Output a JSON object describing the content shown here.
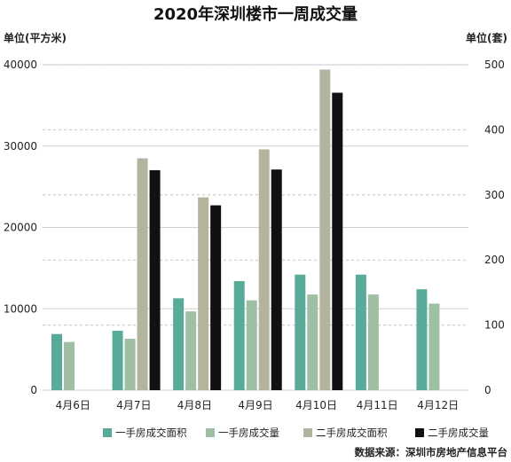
{
  "chart_data": {
    "type": "bar",
    "title": "2020年深圳楼市一周成交量",
    "left_unit": "单位(平方米)",
    "right_unit": "单位(套)",
    "categories": [
      "4月6日",
      "4月7日",
      "4月8日",
      "4月9日",
      "4月10日",
      "4月11日",
      "4月12日"
    ],
    "y_left_ticks": [
      "0",
      "10000",
      "20000",
      "30000",
      "40000"
    ],
    "y_right_ticks": [
      "0",
      "100",
      "200",
      "300",
      "400",
      "500"
    ],
    "ylim_left": [
      0,
      40000
    ],
    "ylim_right": [
      0,
      500
    ],
    "grid": true,
    "legend_position": "bottom",
    "series": [
      {
        "name": "一手房成交面积",
        "axis": "left",
        "color": "#58ab98",
        "values": [
          6900,
          7300,
          11300,
          13400,
          14200,
          14200,
          12400
        ]
      },
      {
        "name": "一手房成交量",
        "axis": "right",
        "color": "#9fbfa4",
        "values": [
          74,
          79,
          121,
          138,
          147,
          147,
          133
        ]
      },
      {
        "name": "二手房成交面积",
        "axis": "left",
        "color": "#b4b39e",
        "values": [
          null,
          28500,
          23700,
          29600,
          39400,
          null,
          null
        ]
      },
      {
        "name": "二手房成交量",
        "axis": "right",
        "color": "#111111",
        "values": [
          null,
          338,
          284,
          339,
          457,
          null,
          null
        ]
      }
    ],
    "source": "数据来源：深圳市房地产信息平台"
  }
}
